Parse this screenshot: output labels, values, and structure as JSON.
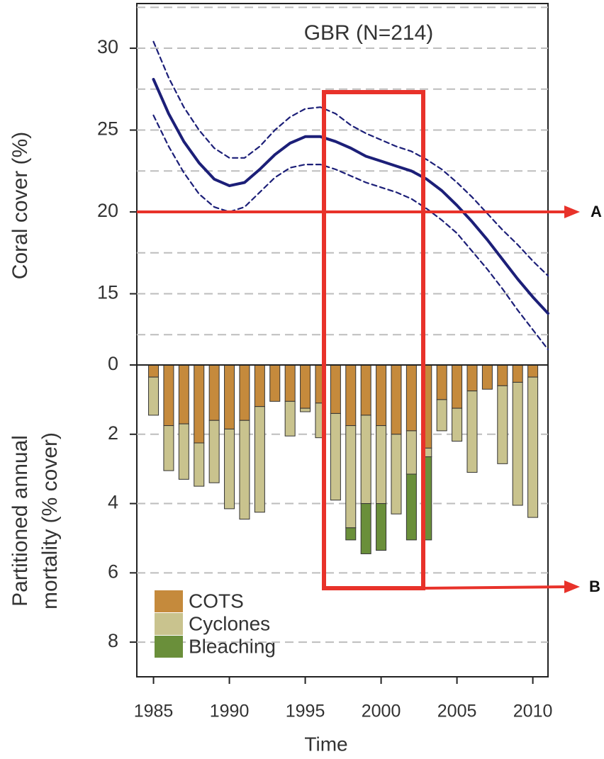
{
  "chart_data": [
    {
      "type": "line",
      "title": "GBR (N=214)",
      "ylabel": "Coral cover (%)",
      "x": [
        1985,
        1986,
        1987,
        1988,
        1989,
        1990,
        1991,
        1992,
        1993,
        1994,
        1995,
        1996,
        1997,
        1998,
        1999,
        2000,
        2001,
        2002,
        2003,
        2004,
        2005,
        2006,
        2007,
        2008,
        2009,
        2010,
        2011
      ],
      "series": [
        {
          "color": "#1c1f78",
          "dashed": false,
          "values": [
            28.1,
            26.0,
            24.3,
            23.0,
            22.0,
            21.6,
            21.8,
            22.6,
            23.5,
            24.2,
            24.6,
            24.6,
            24.3,
            23.9,
            23.4,
            23.1,
            22.8,
            22.5,
            22.0,
            21.3,
            20.4,
            19.4,
            18.3,
            17.1,
            15.9,
            14.8,
            13.8
          ]
        },
        {
          "color": "#1c1f78",
          "dashed": true,
          "values": [
            30.4,
            28.2,
            26.4,
            25.0,
            23.9,
            23.3,
            23.3,
            24.0,
            25.0,
            25.8,
            26.3,
            26.4,
            26.0,
            25.3,
            24.8,
            24.4,
            24.0,
            23.7,
            23.2,
            22.6,
            21.8,
            20.9,
            19.9,
            18.9,
            18.0,
            17.0,
            16.1
          ]
        },
        {
          "color": "#1c1f78",
          "dashed": true,
          "values": [
            25.9,
            24.0,
            22.4,
            21.1,
            20.3,
            20.0,
            20.3,
            21.2,
            22.1,
            22.7,
            22.9,
            22.9,
            22.6,
            22.2,
            21.8,
            21.5,
            21.2,
            20.8,
            20.2,
            19.5,
            18.7,
            17.6,
            16.5,
            15.3,
            14.0,
            12.8,
            11.6
          ]
        }
      ],
      "xlim": [
        1983.9,
        2011
      ],
      "ylim": [
        10.65,
        32.73
      ],
      "yticks": [
        15,
        20,
        25,
        30
      ],
      "ygrid": [
        12.5,
        15,
        17.5,
        20,
        22.5,
        25,
        27.5,
        30,
        32.5
      ],
      "grid": true
    },
    {
      "type": "stacked_bar",
      "ylabel": [
        "Partitioned annual",
        "mortality (% cover)"
      ],
      "xlabel": "Time",
      "x": [
        1985,
        1986,
        1987,
        1988,
        1989,
        1990,
        1991,
        1992,
        1993,
        1994,
        1995,
        1996,
        1997,
        1998,
        1999,
        2000,
        2001,
        2002,
        2003,
        2004,
        2005,
        2006,
        2007,
        2008,
        2009,
        2010
      ],
      "series": [
        {
          "name": "COTS",
          "color": "#c58a3c",
          "values": [
            0.35,
            1.75,
            1.7,
            2.25,
            1.6,
            1.85,
            1.6,
            1.2,
            1.05,
            1.05,
            1.25,
            1.1,
            1.4,
            1.75,
            1.45,
            1.75,
            2.0,
            1.9,
            2.4,
            1.0,
            1.25,
            0.75,
            0.7,
            0.6,
            0.5,
            0.35
          ]
        },
        {
          "name": "Cyclones",
          "color": "#c9c38e",
          "values": [
            1.1,
            1.3,
            1.6,
            1.25,
            1.8,
            2.3,
            2.85,
            3.05,
            0,
            1.0,
            0.1,
            1.0,
            2.5,
            2.95,
            2.55,
            2.25,
            2.3,
            1.25,
            0.25,
            0.9,
            0.95,
            2.35,
            0,
            2.25,
            3.55,
            4.05
          ]
        },
        {
          "name": "Bleaching",
          "color": "#6a8f3a",
          "values": [
            0,
            0,
            0,
            0,
            0,
            0,
            0,
            0,
            0,
            0,
            0,
            0,
            0,
            0.35,
            1.45,
            1.35,
            0,
            1.9,
            2.4,
            0,
            0,
            0,
            0,
            0,
            0,
            0
          ]
        }
      ],
      "xlim": [
        1983.9,
        2011
      ],
      "xticks": [
        1985,
        1990,
        1995,
        2000,
        2005,
        2010
      ],
      "ylim": [
        0,
        9
      ],
      "y_inverted": true,
      "yticks": [
        0,
        2,
        4,
        6,
        8
      ],
      "grid": true,
      "legend": "lower left"
    }
  ],
  "annotations": [
    {
      "text": "A"
    },
    {
      "text": "B"
    }
  ]
}
